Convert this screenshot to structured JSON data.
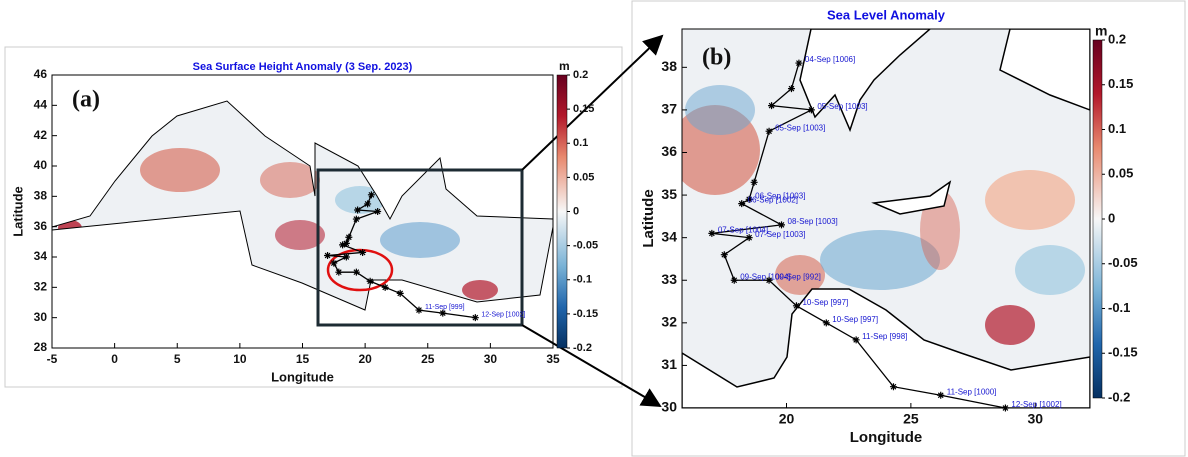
{
  "chart_data": [
    {
      "type": "map",
      "title": "Sea Surface Height Anomaly (3 Sep. 2023)",
      "panel_label": "(a)",
      "xlabel": "Longitude",
      "ylabel": "Latitude",
      "xlim": [
        -5,
        35
      ],
      "ylim": [
        28,
        46
      ],
      "xticks": [
        -5,
        0,
        5,
        10,
        15,
        20,
        25,
        30,
        35
      ],
      "yticks": [
        28,
        30,
        32,
        34,
        36,
        38,
        40,
        42,
        44,
        46
      ],
      "colorbar": {
        "label": "m",
        "lim": [
          -0.2,
          0.2
        ],
        "ticks": [
          -0.2,
          -0.15,
          -0.1,
          -0.05,
          0,
          0.05,
          0.1,
          0.15,
          0.2
        ]
      },
      "track": {
        "color": "#000000",
        "x": [
          20.5,
          20.2,
          19.4,
          21.0,
          19.3,
          18.7,
          18.5,
          18.2,
          19.8,
          17.0,
          18.5,
          17.5,
          17.9,
          19.3,
          20.4,
          21.6,
          22.8,
          24.3,
          26.2,
          28.8
        ],
        "y": [
          38.1,
          37.5,
          37.1,
          37.0,
          36.5,
          35.3,
          34.9,
          34.8,
          34.3,
          34.1,
          34.0,
          33.6,
          33.0,
          33.0,
          32.4,
          32.0,
          31.6,
          30.5,
          30.3,
          30.0
        ],
        "labels": [
          null,
          null,
          null,
          null,
          null,
          null,
          null,
          null,
          null,
          null,
          null,
          null,
          null,
          null,
          null,
          null,
          null,
          "11-Sep [999]",
          null,
          "12-Sep [1002]"
        ]
      }
    },
    {
      "type": "map",
      "title": "Sea Level Anomaly",
      "panel_label": "(b)",
      "xlabel": "Longitude",
      "ylabel": "Latitude",
      "xlim": [
        15.8,
        32.2
      ],
      "ylim": [
        30,
        38.9
      ],
      "xticks": [
        20,
        25,
        30
      ],
      "yticks": [
        30,
        31,
        32,
        33,
        34,
        35,
        36,
        37,
        38
      ],
      "colorbar": {
        "label": "m",
        "lim": [
          -0.2,
          0.2
        ],
        "ticks": [
          -0.2,
          -0.15,
          -0.1,
          -0.05,
          0,
          0.05,
          0.1,
          0.15,
          0.2
        ]
      },
      "track": {
        "color": "#000000",
        "x": [
          20.5,
          20.2,
          19.4,
          21.0,
          19.3,
          18.7,
          18.5,
          18.2,
          19.8,
          17.0,
          18.5,
          17.5,
          17.9,
          19.3,
          20.4,
          21.6,
          22.8,
          24.3,
          26.2,
          28.8
        ],
        "y": [
          38.1,
          37.5,
          37.1,
          37.0,
          36.5,
          35.3,
          34.9,
          34.8,
          34.3,
          34.1,
          34.0,
          33.6,
          33.0,
          33.0,
          32.4,
          32.0,
          31.6,
          30.5,
          30.3,
          30.0
        ],
        "labels": [
          "04-Sep [1006]",
          null,
          null,
          "05-Sep [1003]",
          "05-Sep [1003]",
          null,
          "06-Sep [1003]",
          "06-Sep [1002]",
          "08-Sep [1003]",
          "07-Sep [1004]",
          "07-Sep [1003]",
          null,
          "09-Sep [1004]",
          "09-Sep [992]",
          "10-Sep [997]",
          "10-Sep [997]",
          "11-Sep [998]",
          null,
          "11-Sep [1000]",
          "12-Sep [1002]"
        ]
      }
    }
  ]
}
